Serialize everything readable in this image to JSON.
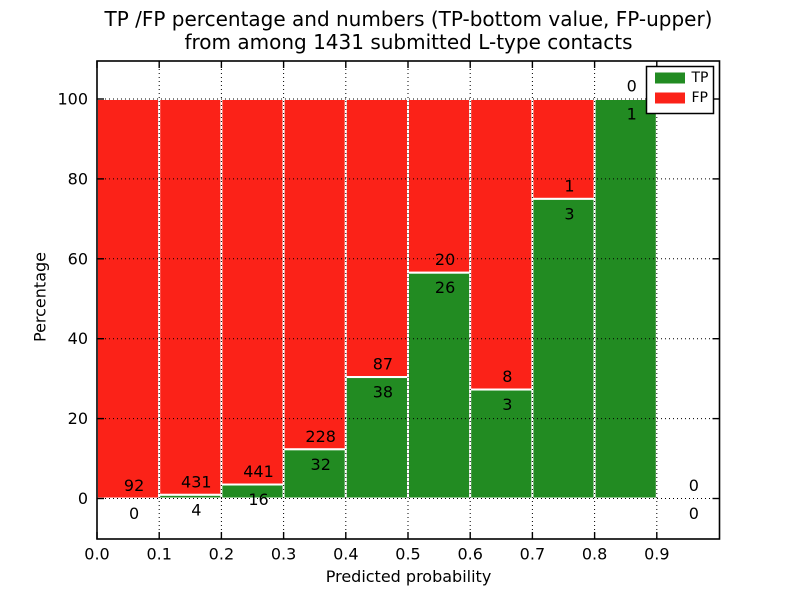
{
  "chart_data": {
    "type": "bar",
    "stacked": true,
    "orientation": "vertical",
    "title_line1": "TP /FP percentage and numbers (TP-bottom value, FP-upper)",
    "title_line2": "from among 1431 submitted L-type contacts",
    "xlabel": "Predicted probability",
    "ylabel": "Percentage",
    "total_contacts": 1431,
    "bin_width": 0.1,
    "bins": [
      {
        "range": "0.0-0.1",
        "tp": 0,
        "fp": 92,
        "tp_pct": 0.0
      },
      {
        "range": "0.1-0.2",
        "tp": 4,
        "fp": 431,
        "tp_pct": 0.9
      },
      {
        "range": "0.2-0.3",
        "tp": 16,
        "fp": 441,
        "tp_pct": 3.5
      },
      {
        "range": "0.3-0.4",
        "tp": 32,
        "fp": 228,
        "tp_pct": 12.3
      },
      {
        "range": "0.4-0.5",
        "tp": 38,
        "fp": 87,
        "tp_pct": 30.4
      },
      {
        "range": "0.5-0.6",
        "tp": 26,
        "fp": 20,
        "tp_pct": 56.5
      },
      {
        "range": "0.6-0.7",
        "tp": 3,
        "fp": 8,
        "tp_pct": 27.3
      },
      {
        "range": "0.7-0.8",
        "tp": 3,
        "fp": 1,
        "tp_pct": 75.0
      },
      {
        "range": "0.8-0.9",
        "tp": 1,
        "fp": 0,
        "tp_pct": 100.0
      },
      {
        "range": "0.9-1.0",
        "tp": 0,
        "fp": 0,
        "tp_pct": null
      }
    ],
    "colors": {
      "tp": "#228b22",
      "fp": "#fb2218",
      "grid": "#000000",
      "bar_edge": "#ffffff"
    },
    "legend": {
      "position": "upper right",
      "entries": [
        {
          "label": "TP",
          "color": "#228b22"
        },
        {
          "label": "FP",
          "color": "#fb2218"
        }
      ]
    },
    "xticks": [
      "0.0",
      "0.1",
      "0.2",
      "0.3",
      "0.4",
      "0.5",
      "0.6",
      "0.7",
      "0.8",
      "0.9"
    ],
    "yticks": [
      "0",
      "20",
      "40",
      "60",
      "80",
      "100"
    ],
    "xlim": [
      0.0,
      1.0
    ],
    "ylim": [
      -10.3,
      109.8
    ],
    "grid": {
      "linestyle": "dotted",
      "on": true
    }
  }
}
